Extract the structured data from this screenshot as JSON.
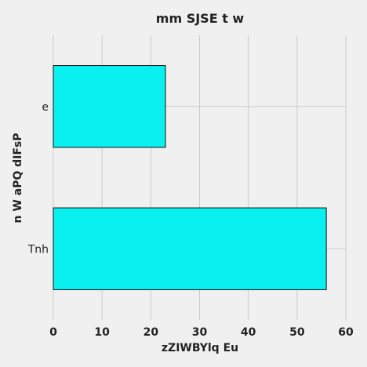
{
  "chart_data": {
    "type": "bar",
    "orientation": "horizontal",
    "title": "mm SJSE t w",
    "xlabel": "zZIWBYlq Eu",
    "ylabel": "n W aPQ dIFsP",
    "categories": [
      "Tnh",
      "e"
    ],
    "values": [
      56,
      23
    ],
    "xlim": [
      0,
      60
    ],
    "xticks": [
      0,
      10,
      20,
      30,
      40,
      50,
      60
    ],
    "grid": true,
    "bar_color": "#08f0f0",
    "bar_edge_color": "#111111",
    "background_color": "#f0f0f0",
    "grid_color": "#cbcbcb"
  }
}
